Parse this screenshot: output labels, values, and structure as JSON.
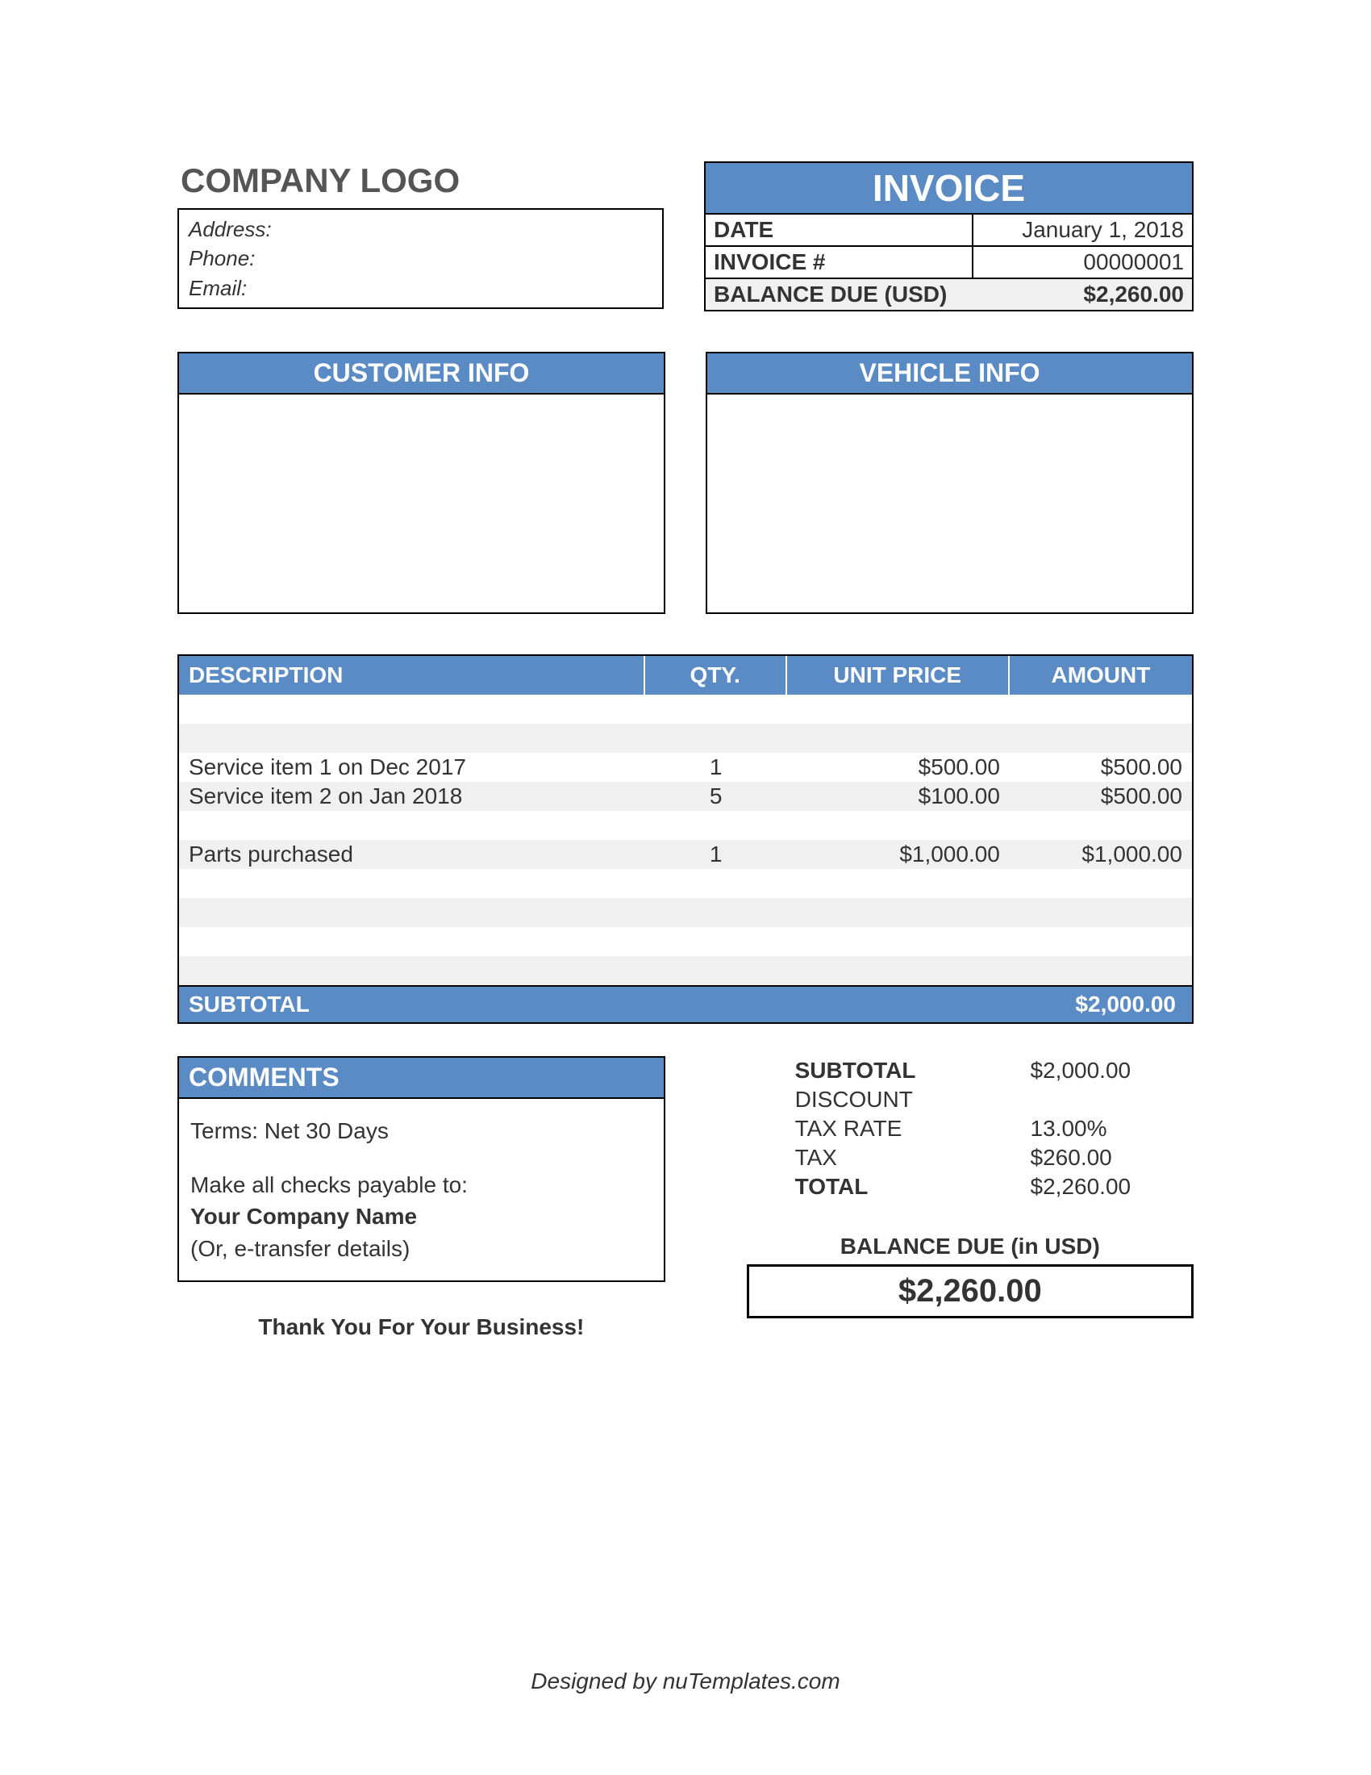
{
  "colors": {
    "accent": "#5b8bc4",
    "stripe": "#f0f0f0",
    "border": "#000000",
    "text": "#333333",
    "header_text": "#ffffff"
  },
  "company": {
    "logo_text": "COMPANY LOGO",
    "address_label": "Address:",
    "phone_label": "Phone:",
    "email_label": "Email:"
  },
  "invoice_header": {
    "title": "INVOICE",
    "date_label": "DATE",
    "date_value": "January 1, 2018",
    "number_label": "INVOICE #",
    "number_value": "00000001",
    "balance_label": "BALANCE DUE (USD)",
    "balance_value": "$2,260.00"
  },
  "info_boxes": {
    "customer_header": "CUSTOMER INFO",
    "vehicle_header": "VEHICLE INFO"
  },
  "items_table": {
    "columns": {
      "description": "DESCRIPTION",
      "qty": "QTY.",
      "unit_price": "UNIT PRICE",
      "amount": "AMOUNT"
    },
    "rows": [
      {
        "desc": "",
        "qty": "",
        "unit": "",
        "amt": "",
        "stripe": false
      },
      {
        "desc": "",
        "qty": "",
        "unit": "",
        "amt": "",
        "stripe": true
      },
      {
        "desc": "Service item 1 on Dec 2017",
        "qty": "1",
        "unit": "$500.00",
        "amt": "$500.00",
        "stripe": false
      },
      {
        "desc": "Service item 2 on Jan 2018",
        "qty": "5",
        "unit": "$100.00",
        "amt": "$500.00",
        "stripe": true
      },
      {
        "desc": "",
        "qty": "",
        "unit": "",
        "amt": "",
        "stripe": false
      },
      {
        "desc": "Parts purchased",
        "qty": "1",
        "unit": "$1,000.00",
        "amt": "$1,000.00",
        "stripe": true
      },
      {
        "desc": "",
        "qty": "",
        "unit": "",
        "amt": "",
        "stripe": false
      },
      {
        "desc": "",
        "qty": "",
        "unit": "",
        "amt": "",
        "stripe": true
      },
      {
        "desc": "",
        "qty": "",
        "unit": "",
        "amt": "",
        "stripe": false
      },
      {
        "desc": "",
        "qty": "",
        "unit": "",
        "amt": "",
        "stripe": true
      }
    ],
    "subtotal_label": "SUBTOTAL",
    "subtotal_value": "$2,000.00"
  },
  "comments": {
    "header": "COMMENTS",
    "terms": "Terms: Net 30 Days",
    "payable_intro": "Make all checks payable to:",
    "payable_name": "Your Company Name",
    "payable_alt": "(Or, e-transfer details)"
  },
  "totals": {
    "subtotal_label": "SUBTOTAL",
    "subtotal_value": "$2,000.00",
    "discount_label": "DISCOUNT",
    "discount_value": "",
    "taxrate_label": "TAX RATE",
    "taxrate_value": "13.00%",
    "tax_label": "TAX",
    "tax_value": "$260.00",
    "total_label": "TOTAL",
    "total_value": "$2,260.00"
  },
  "balance_due": {
    "label": "BALANCE DUE (in USD)",
    "value": "$2,260.00"
  },
  "thank_you": "Thank You For Your Business!",
  "footer": "Designed by nuTemplates.com"
}
